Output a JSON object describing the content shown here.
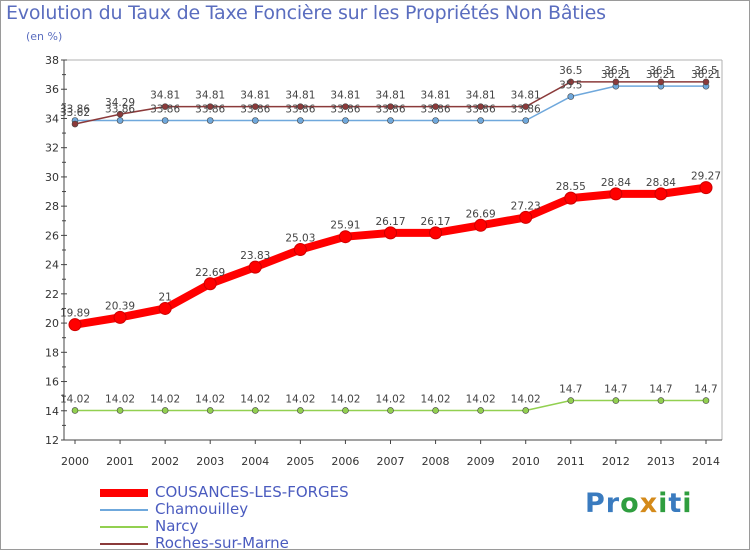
{
  "title": "Evolution du Taux de Taxe Foncière sur les Propriétés Non Bâties",
  "unit": "(en %)",
  "logo": "Proxiti",
  "chart_data": {
    "type": "line",
    "title": "Evolution du Taux de Taxe Foncière sur les Propriétés Non Bâties",
    "ylabel": "(en %)",
    "xlabel": "",
    "ylim": [
      12,
      38
    ],
    "yticks": [
      12,
      14,
      16,
      18,
      20,
      22,
      24,
      26,
      28,
      30,
      32,
      34,
      36,
      38
    ],
    "grid": false,
    "legend_position": "bottom-left",
    "x": [
      "2000",
      "2001",
      "2002",
      "2003",
      "2004",
      "2005",
      "2006",
      "2007",
      "2008",
      "2009",
      "2010",
      "2011",
      "2012",
      "2013",
      "2014"
    ],
    "series": [
      {
        "name": "COUSANCES-LES-FORGES",
        "color": "#ff0000",
        "values": [
          19.89,
          20.39,
          21,
          22.69,
          23.83,
          25.03,
          25.91,
          26.17,
          26.17,
          26.69,
          27.23,
          28.55,
          28.84,
          28.84,
          29.27
        ],
        "labels": [
          "19.89",
          "20.39",
          "21",
          "22.69",
          "23.83",
          "25.03",
          "25.91",
          "26.17",
          "26.17",
          "26.69",
          "27.23",
          "28.55",
          "28.84",
          "28.84",
          "29.27"
        ]
      },
      {
        "name": "Chamouilley",
        "color": "#6fa8dc",
        "values": [
          33.86,
          33.86,
          33.86,
          33.86,
          33.86,
          33.86,
          33.86,
          33.86,
          33.86,
          33.86,
          33.86,
          35.5,
          36.21,
          36.21,
          36.21
        ],
        "labels": [
          "33.86",
          "33.86",
          "33.86",
          "33.86",
          "33.86",
          "33.86",
          "33.86",
          "33.86",
          "33.86",
          "33.86",
          "33.86",
          "35.5",
          "36.21",
          "36.21",
          "36.21"
        ]
      },
      {
        "name": "Narcy",
        "color": "#92d050",
        "values": [
          14.02,
          14.02,
          14.02,
          14.02,
          14.02,
          14.02,
          14.02,
          14.02,
          14.02,
          14.02,
          14.02,
          14.7,
          14.7,
          14.7,
          14.7
        ],
        "labels": [
          "14.02",
          "14.02",
          "14.02",
          "14.02",
          "14.02",
          "14.02",
          "14.02",
          "14.02",
          "14.02",
          "14.02",
          "14.02",
          "14.7",
          "14.7",
          "14.7",
          "14.7"
        ]
      },
      {
        "name": "Roches-sur-Marne",
        "color": "#8b3a3a",
        "values": [
          33.62,
          34.29,
          34.81,
          34.81,
          34.81,
          34.81,
          34.81,
          34.81,
          34.81,
          34.81,
          34.81,
          36.5,
          36.5,
          36.5,
          36.5
        ],
        "labels": [
          "33.62",
          "34.29",
          "34.81",
          "34.81",
          "34.81",
          "34.81",
          "34.81",
          "34.81",
          "34.81",
          "34.81",
          "34.81",
          "36.5",
          "36.5",
          "36.5",
          "36.5"
        ]
      }
    ]
  }
}
